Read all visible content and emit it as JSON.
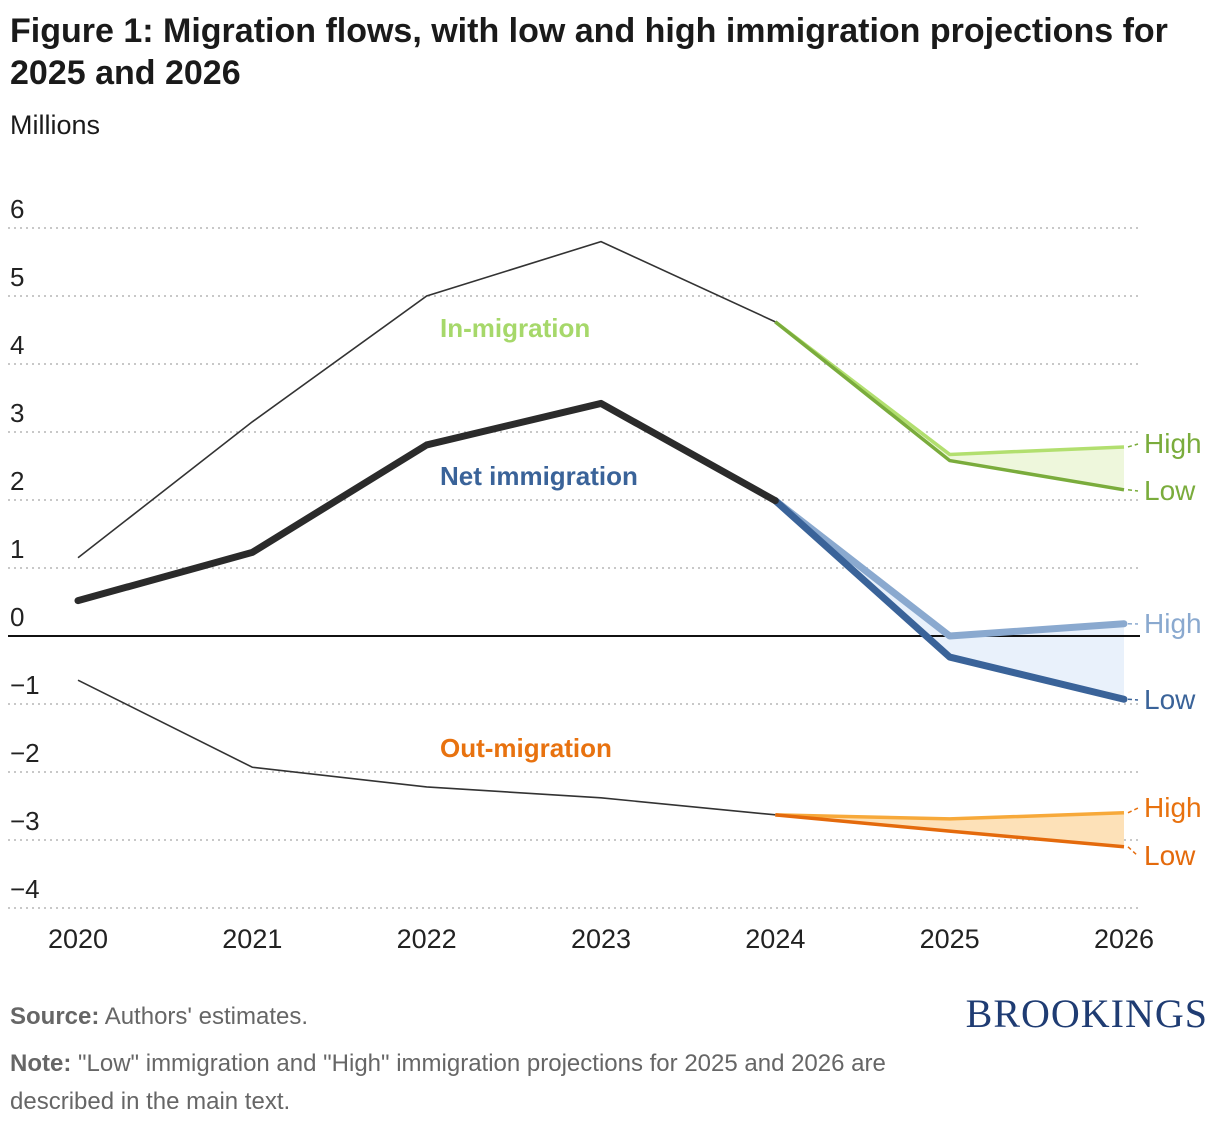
{
  "title": "Figure 1: Migration flows, with low and high immigration projections for 2025 and 2026",
  "units_label": "Millions",
  "chart_data": {
    "type": "line",
    "x": [
      "2020",
      "2021",
      "2022",
      "2023",
      "2024",
      "2025",
      "2026"
    ],
    "ylim": [
      -4,
      6
    ],
    "yticks": [
      "6",
      "5",
      "4",
      "3",
      "2",
      "1",
      "0",
      "−1",
      "−2",
      "−3",
      "−4"
    ],
    "ytick_values": [
      6,
      5,
      4,
      3,
      2,
      1,
      0,
      -1,
      -2,
      -3,
      -4
    ],
    "historical": {
      "in_migration": [
        1.15,
        3.15,
        5.0,
        5.8,
        4.62
      ],
      "net_immigration": [
        0.52,
        1.23,
        2.81,
        3.42,
        1.99
      ],
      "out_migration": [
        -0.65,
        -1.93,
        -2.22,
        -2.38,
        -2.63
      ]
    },
    "projections": {
      "in_migration": {
        "high": [
          4.62,
          2.67,
          2.78
        ],
        "low": [
          4.62,
          2.58,
          2.15
        ]
      },
      "net_immigration": {
        "high": [
          1.99,
          0.0,
          0.18
        ],
        "low": [
          1.99,
          -0.31,
          -0.93
        ]
      },
      "out_migration": {
        "high": [
          -2.63,
          -2.69,
          -2.6
        ],
        "low": [
          -2.63,
          -2.87,
          -3.1
        ]
      }
    },
    "series_labels": {
      "in_migration": "In-migration",
      "net_immigration": "Net immigration",
      "out_migration": "Out-migration"
    },
    "scenario_labels": {
      "high": "High",
      "low": "Low"
    },
    "colors": {
      "historical_thin": "#333333",
      "net_historical": "#2b2b2b",
      "in_high": "#b2df6f",
      "in_low": "#7aac3c",
      "in_fill": "#eef7dc",
      "in_label": "#a6d86a",
      "net_high": "#8aa9cf",
      "net_low": "#3a6399",
      "net_fill": "#e9f1fb",
      "net_label": "#3a6399",
      "out_high": "#f7a93a",
      "out_low": "#e46a0c",
      "out_fill": "#fde1b8",
      "out_label": "#e8720f",
      "grid": "#b5b5b5",
      "zero_line": "#111111"
    }
  },
  "footer": {
    "source_label": "Source:",
    "source_text": "Authors' estimates.",
    "note_label": "Note:",
    "note_text": "\"Low\" immigration and \"High\" immigration projections for 2025 and 2026 are described in the main text."
  },
  "brand": "BROOKINGS"
}
